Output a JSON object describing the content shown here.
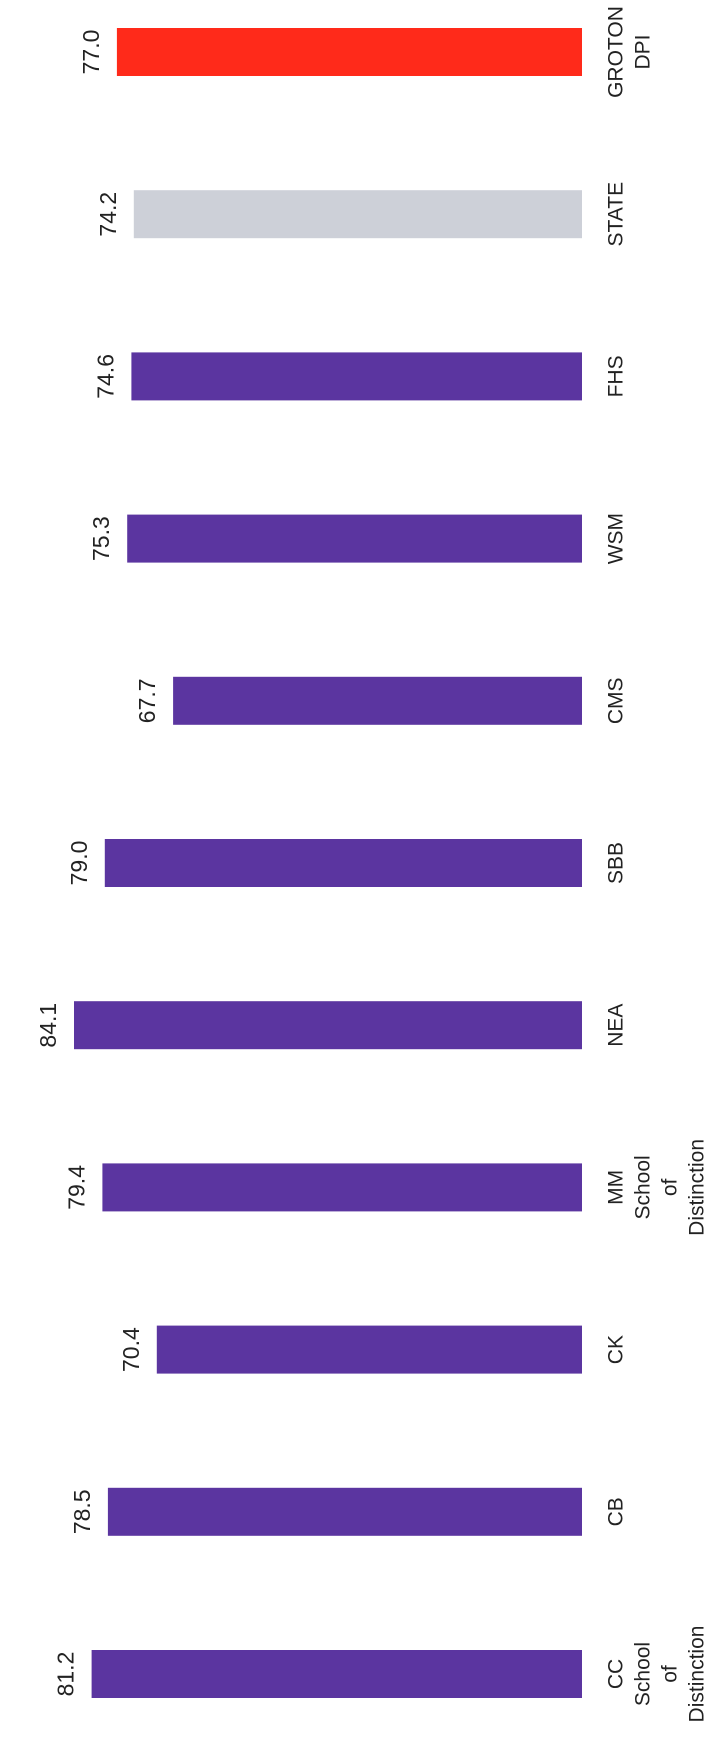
{
  "chart_data": {
    "type": "bar",
    "orientation": "horizontal",
    "categories": [
      [
        "GROTON",
        "DPI"
      ],
      [
        "STATE"
      ],
      [
        "FHS"
      ],
      [
        "WSM"
      ],
      [
        "CMS"
      ],
      [
        "SBB"
      ],
      [
        "NEA"
      ],
      [
        "MM",
        "School",
        "of",
        "Distinction"
      ],
      [
        "CK"
      ],
      [
        "CB"
      ],
      [
        "CC",
        "School",
        "of",
        "Distinction"
      ]
    ],
    "values": [
      77.0,
      74.2,
      74.6,
      75.3,
      67.7,
      79.0,
      84.1,
      79.4,
      70.4,
      78.5,
      81.2
    ],
    "value_labels": [
      "77.0",
      "74.2",
      "74.6",
      "75.3",
      "67.7",
      "79.0",
      "84.1",
      "79.4",
      "70.4",
      "78.5",
      "81.2"
    ],
    "bar_colors": [
      "#ff2a1a",
      "#cdd0d8",
      "#5b35a0",
      "#5b35a0",
      "#5b35a0",
      "#5b35a0",
      "#5b35a0",
      "#5b35a0",
      "#5b35a0",
      "#5b35a0",
      "#5b35a0"
    ],
    "title": "",
    "xlabel": "",
    "ylabel": "",
    "xlim": [
      0,
      90
    ],
    "grid": false,
    "legend": "none"
  }
}
